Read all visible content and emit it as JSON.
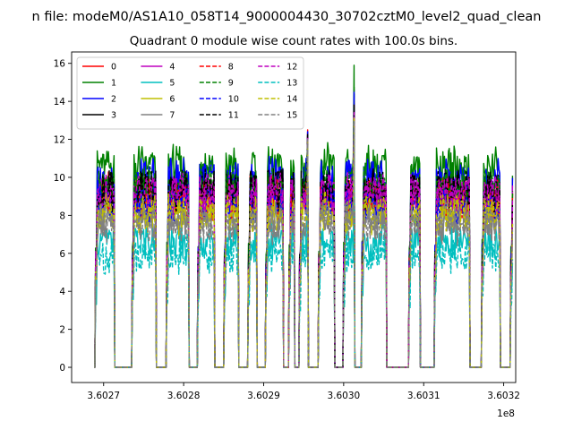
{
  "chart_data": {
    "type": "line",
    "suptitle": "n file: modeM0/AS1A10_058T14_9000004430_30702cztM0_level2_quad_clean",
    "title": "Quadrant 0 module wise count rates with 100.0s bins.",
    "xlabel": "",
    "ylabel": "",
    "x_offset_label": "1e8",
    "xlim": [
      3.60266,
      3.603215
    ],
    "ylim": [
      -0.8,
      16.6
    ],
    "xticks": [
      3.6027,
      3.6028,
      3.6029,
      3.603,
      3.6031,
      3.6032
    ],
    "xtick_labels": [
      "3.6027",
      "3.6028",
      "3.6029",
      "3.6030",
      "3.6031",
      "3.6032"
    ],
    "yticks": [
      0,
      2,
      4,
      6,
      8,
      10,
      12,
      14,
      16
    ],
    "ytick_labels": [
      "0",
      "2",
      "4",
      "6",
      "8",
      "10",
      "12",
      "14",
      "16"
    ],
    "grid": false,
    "legend": {
      "placement": "top-left",
      "columns": 4
    },
    "on_intervals": [
      [
        3.60269,
        3.602713
      ],
      [
        3.602736,
        3.602765
      ],
      [
        3.602779,
        3.602806
      ],
      [
        3.602818,
        3.602838
      ],
      [
        3.602851,
        3.602868
      ],
      [
        3.602881,
        3.602891
      ],
      [
        3.602903,
        3.602924
      ],
      [
        3.602932,
        3.602938
      ],
      [
        3.602945,
        3.602955
      ],
      [
        3.602969,
        3.602988
      ],
      [
        3.603,
        3.603013
      ],
      [
        3.603023,
        3.603053
      ],
      [
        3.603082,
        3.603095
      ],
      [
        3.603114,
        3.603157
      ],
      [
        3.603173,
        3.603195
      ],
      [
        3.603209,
        3.603211
      ]
    ],
    "spikes": [
      {
        "x": 3.602955,
        "values": [
          12.5,
          12.0,
          12.4,
          12.2,
          12.0,
          11.5,
          11.8,
          11.9,
          12.3,
          12.2,
          12.4,
          12.3,
          12.1,
          11.6,
          11.9,
          12.0
        ]
      },
      {
        "x": 3.603013,
        "values": [
          14.0,
          15.9,
          14.6,
          13.9,
          13.5,
          12.0,
          13.2,
          13.0,
          14.0,
          14.8,
          14.4,
          13.8,
          13.4,
          12.5,
          13.1,
          13.0
        ]
      }
    ],
    "series": [
      {
        "name": "0",
        "color": "#ff0000",
        "dash": "solid",
        "level": 9.2
      },
      {
        "name": "1",
        "color": "#008000",
        "dash": "solid",
        "level": 10.6
      },
      {
        "name": "2",
        "color": "#0000ff",
        "dash": "solid",
        "level": 9.9
      },
      {
        "name": "3",
        "color": "#000000",
        "dash": "solid",
        "level": 9.4
      },
      {
        "name": "4",
        "color": "#bf00bf",
        "dash": "solid",
        "level": 9.0
      },
      {
        "name": "5",
        "color": "#00bfbf",
        "dash": "solid",
        "level": 6.6
      },
      {
        "name": "6",
        "color": "#bfbf00",
        "dash": "solid",
        "level": 8.3
      },
      {
        "name": "7",
        "color": "#808080",
        "dash": "solid",
        "level": 7.7
      },
      {
        "name": "8",
        "color": "#ff0000",
        "dash": "dashed",
        "level": 8.9
      },
      {
        "name": "9",
        "color": "#008000",
        "dash": "dashed",
        "level": 9.6
      },
      {
        "name": "10",
        "color": "#0000ff",
        "dash": "dashed",
        "level": 8.6
      },
      {
        "name": "11",
        "color": "#000000",
        "dash": "dashed",
        "level": 9.3
      },
      {
        "name": "12",
        "color": "#bf00bf",
        "dash": "dashed",
        "level": 9.1
      },
      {
        "name": "13",
        "color": "#00bfbf",
        "dash": "dashed",
        "level": 6.0
      },
      {
        "name": "14",
        "color": "#bfbf00",
        "dash": "dashed",
        "level": 8.1
      },
      {
        "name": "15",
        "color": "#808080",
        "dash": "dashed",
        "level": 7.6
      }
    ]
  }
}
